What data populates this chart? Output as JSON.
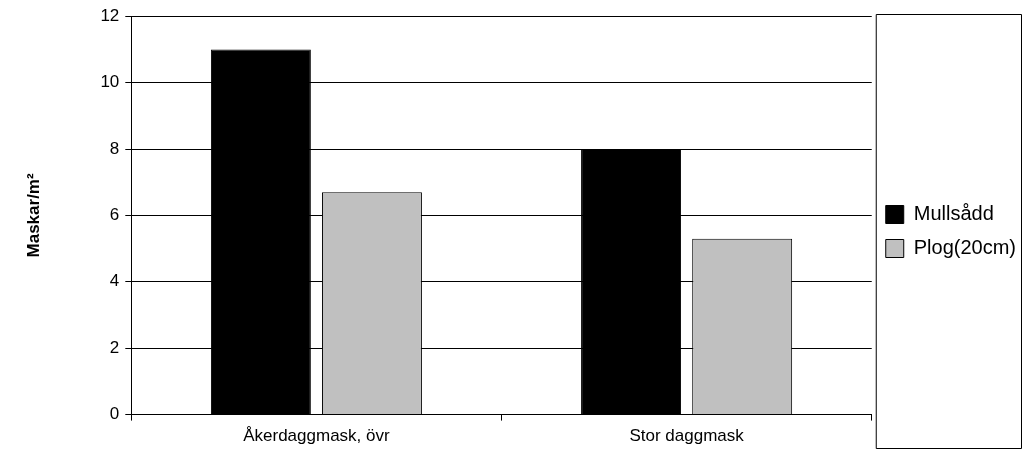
{
  "chart_data": {
    "type": "bar",
    "ylabel": "Maskar/m²",
    "categories": [
      "Åkerdaggmask, övr",
      "Stor daggmask"
    ],
    "series": [
      {
        "name": "Mullsådd",
        "color": "#000000",
        "values": [
          11,
          8
        ]
      },
      {
        "name": "Plog(20cm)",
        "color": "#c0c0c0",
        "values": [
          6.7,
          5.3
        ]
      }
    ],
    "ylim": [
      0,
      12
    ],
    "yticks": [
      0,
      2,
      4,
      6,
      8,
      10,
      12
    ],
    "grid": "y",
    "legend": "right"
  }
}
